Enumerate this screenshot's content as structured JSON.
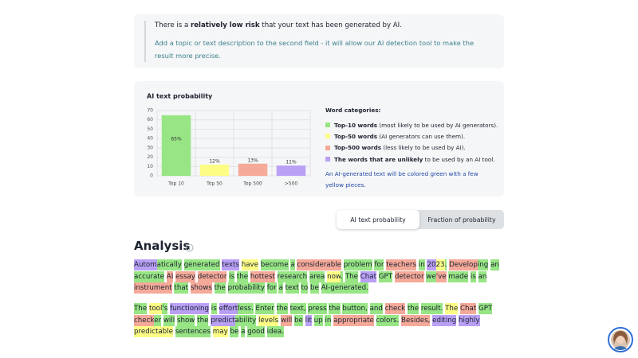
{
  "alert": {
    "parts": [
      "There is a ",
      "relatively low risk",
      " that your text has been generated by AI."
    ],
    "hint": "Add a topic or text description to the second field - it will allow our AI detection tool to make the result more precise."
  },
  "chart_data": {
    "type": "bar",
    "title": "AI text probability",
    "categories": [
      "Top 10",
      "Top 50",
      "Top 500",
      ">500"
    ],
    "values": [
      65,
      12,
      13,
      11
    ],
    "value_labels": [
      "65%",
      "12%",
      "13%",
      "11%"
    ],
    "colors": [
      "#97e584",
      "#fdfd86",
      "#f5a999",
      "#b9a0f5"
    ],
    "ylim": [
      0,
      70
    ],
    "yticks": [
      0,
      10,
      20,
      30,
      40,
      50,
      60,
      70
    ],
    "grid": true,
    "legend": {
      "title": "Word categories:",
      "items": [
        {
          "label": "Top-10 words",
          "desc": " (most likely to be used by AI generators)."
        },
        {
          "label": "Top-50 words",
          "desc": " (AI generators can use them)."
        },
        {
          "label": "Top-500 words",
          "desc": " (less likely to be used by AI)."
        },
        {
          "label": "The words that are unlikely",
          "desc": " to be used by an AI tool."
        }
      ],
      "note": "An AI-generated text will be colored green with a few yellow pieces."
    }
  },
  "tabs": [
    "AI text probability",
    "Fraction of probability"
  ],
  "analysis": {
    "title": "Analysis",
    "paragraphs": [
      [
        [
          [
            "Autom",
            "#b9a0f5"
          ],
          [
            "atically",
            "#97e584"
          ]
        ],
        [
          [
            "generated",
            "#97e584"
          ]
        ],
        [
          [
            "texts",
            "#b9a0f5"
          ]
        ],
        [
          [
            "have",
            "#fdfd86"
          ]
        ],
        [
          [
            "become",
            "#97e584"
          ]
        ],
        [
          [
            "a",
            "#97e584"
          ]
        ],
        [
          [
            "considerable",
            "#f5a999"
          ]
        ],
        [
          [
            "problem",
            "#97e584"
          ]
        ],
        [
          [
            "for",
            "#97e584"
          ]
        ],
        [
          [
            "teachers",
            "#f5a999"
          ]
        ],
        [
          [
            "in",
            "#97e584"
          ]
        ],
        [
          [
            "20",
            "#b9a0f5"
          ],
          [
            "23",
            "#fdfd86"
          ],
          [
            ".",
            "#97e584"
          ]
        ],
        [
          [
            "Develop",
            "#f5a999"
          ],
          [
            "ing",
            "#97e584"
          ]
        ],
        [
          [
            "an",
            "#97e584"
          ]
        ],
        [
          [
            "accurate",
            "#97e584"
          ]
        ],
        [
          [
            "AI",
            "#f5a999"
          ]
        ],
        [
          [
            "essay",
            "#f5a999"
          ]
        ],
        [
          [
            "detector",
            "#f5a999"
          ]
        ],
        [
          [
            "is",
            "#97e584"
          ]
        ],
        [
          [
            "the",
            "#97e584"
          ]
        ],
        [
          [
            "hottest",
            "#f5a999"
          ]
        ],
        [
          [
            "research",
            "#97e584"
          ]
        ],
        [
          [
            "area",
            "#97e584"
          ]
        ],
        [
          [
            "now",
            "#fdfd86"
          ],
          [
            ".",
            "#97e584"
          ]
        ],
        [
          [
            "The",
            "#97e584"
          ]
        ],
        [
          [
            "Chat",
            "#b9a0f5"
          ]
        ],
        [
          [
            "GPT",
            "#97e584"
          ]
        ],
        [
          [
            "detector",
            "#f5a999"
          ]
        ],
        [
          [
            "we",
            "#97e584"
          ],
          [
            "'ve",
            "#f5a999"
          ]
        ],
        [
          [
            "made",
            "#97e584"
          ]
        ],
        [
          [
            "is",
            "#97e584"
          ]
        ],
        [
          [
            "an",
            "#97e584"
          ]
        ],
        [
          [
            "instrument",
            "#f5a999"
          ]
        ],
        [
          [
            "that",
            "#97e584"
          ]
        ],
        [
          [
            "shows",
            "#f5a999"
          ]
        ],
        [
          [
            "the",
            "#97e584"
          ]
        ],
        [
          [
            "probability",
            "#97e584"
          ]
        ],
        [
          [
            "for",
            "#97e584"
          ]
        ],
        [
          [
            "a",
            "#97e584"
          ]
        ],
        [
          [
            "text",
            "#97e584"
          ]
        ],
        [
          [
            "to",
            "#97e584"
          ]
        ],
        [
          [
            "be",
            "#97e584"
          ]
        ],
        [
          [
            "AI",
            "#97e584"
          ],
          [
            "-generated",
            "#97e584"
          ],
          [
            ".",
            "#97e584"
          ]
        ]
      ],
      [
        [
          [
            "The",
            "#97e584"
          ]
        ],
        [
          [
            "tool",
            "#fdfd86"
          ],
          [
            "'s",
            "#97e584"
          ]
        ],
        [
          [
            "functioning",
            "#b9a0f5"
          ]
        ],
        [
          [
            "is",
            "#97e584"
          ]
        ],
        [
          [
            "effort",
            "#b9a0f5"
          ],
          [
            "less",
            "#97e584"
          ],
          [
            ".",
            "#97e584"
          ]
        ],
        [
          [
            "Enter",
            "#97e584"
          ]
        ],
        [
          [
            "the",
            "#97e584"
          ]
        ],
        [
          [
            "text,",
            "#97e584"
          ]
        ],
        [
          [
            "press",
            "#97e584"
          ]
        ],
        [
          [
            "the",
            "#97e584"
          ]
        ],
        [
          [
            "button,",
            "#97e584"
          ]
        ],
        [
          [
            "and",
            "#97e584"
          ]
        ],
        [
          [
            "check",
            "#f5a999"
          ]
        ],
        [
          [
            "the",
            "#97e584"
          ]
        ],
        [
          [
            "result.",
            "#97e584"
          ]
        ],
        [
          [
            "The",
            "#fdfd86"
          ]
        ],
        [
          [
            "Chat",
            "#f5a999"
          ]
        ],
        [
          [
            "GPT",
            "#97e584"
          ]
        ],
        [
          [
            "check",
            "#f5a999"
          ],
          [
            "er",
            "#97e584"
          ]
        ],
        [
          [
            "will",
            "#97e584"
          ]
        ],
        [
          [
            "show",
            "#97e584"
          ]
        ],
        [
          [
            "the",
            "#97e584"
          ]
        ],
        [
          [
            "predict",
            "#b9a0f5"
          ],
          [
            "ability",
            "#97e584"
          ]
        ],
        [
          [
            "levels",
            "#fdfd86"
          ]
        ],
        [
          [
            "will",
            "#f5a999"
          ]
        ],
        [
          [
            "be",
            "#97e584"
          ]
        ],
        [
          [
            "lit",
            "#b9a0f5"
          ]
        ],
        [
          [
            "up",
            "#97e584"
          ]
        ],
        [
          [
            "in",
            "#97e584"
          ]
        ],
        [
          [
            "appropriate",
            "#f5a999"
          ]
        ],
        [
          [
            "colors.",
            "#97e584"
          ]
        ],
        [
          [
            "Besides,",
            "#f5a999"
          ]
        ],
        [
          [
            "editing",
            "#b9a0f5"
          ]
        ],
        [
          [
            "highly",
            "#b9a0f5"
          ]
        ],
        [
          [
            "predictable",
            "#fdfd86"
          ]
        ],
        [
          [
            "sentences",
            "#97e584"
          ]
        ],
        [
          [
            "may",
            "#fdfd86"
          ]
        ],
        [
          [
            "be",
            "#97e584"
          ]
        ],
        [
          [
            "a",
            "#97e584"
          ]
        ],
        [
          [
            "good",
            "#97e584"
          ]
        ],
        [
          [
            "idea.",
            "#97e584"
          ]
        ]
      ]
    ]
  }
}
